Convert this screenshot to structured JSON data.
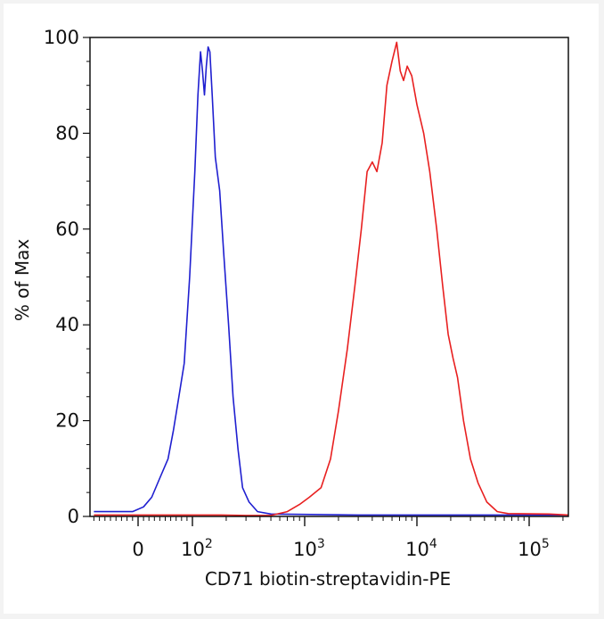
{
  "chart_data": {
    "type": "line",
    "title": "",
    "xlabel": "CD71 biotin-streptavidin-PE",
    "ylabel": "% of Max",
    "x_scale": "biexponential",
    "ylim": [
      0,
      100
    ],
    "y_ticks": [
      0,
      20,
      40,
      60,
      80,
      100
    ],
    "x_ticks": [
      {
        "value": 0,
        "base": "0",
        "exp": ""
      },
      {
        "value": 100,
        "base": "10",
        "exp": "2"
      },
      {
        "value": 1000,
        "base": "10",
        "exp": "3"
      },
      {
        "value": 10000,
        "base": "10",
        "exp": "4"
      },
      {
        "value": 100000,
        "base": "10",
        "exp": "5"
      }
    ],
    "series": [
      {
        "color": "#1f1fd0",
        "points": [
          [
            -80,
            1
          ],
          [
            -40,
            1
          ],
          [
            -10,
            1
          ],
          [
            10,
            2
          ],
          [
            25,
            4
          ],
          [
            40,
            8
          ],
          [
            55,
            12
          ],
          [
            65,
            18
          ],
          [
            75,
            25
          ],
          [
            85,
            32
          ],
          [
            95,
            50
          ],
          [
            105,
            72
          ],
          [
            112,
            88
          ],
          [
            118,
            97
          ],
          [
            123,
            93
          ],
          [
            128,
            88
          ],
          [
            133,
            94
          ],
          [
            138,
            98
          ],
          [
            143,
            97
          ],
          [
            150,
            88
          ],
          [
            160,
            75
          ],
          [
            175,
            68
          ],
          [
            190,
            55
          ],
          [
            210,
            40
          ],
          [
            230,
            25
          ],
          [
            255,
            14
          ],
          [
            280,
            6
          ],
          [
            320,
            3
          ],
          [
            380,
            1
          ],
          [
            500,
            0.5
          ],
          [
            3000,
            0.3
          ],
          [
            20000,
            0.3
          ],
          [
            100000,
            0.3
          ],
          [
            250000,
            0.3
          ]
        ]
      },
      {
        "color": "#e82020",
        "points": [
          [
            -80,
            0.3
          ],
          [
            100,
            0.3
          ],
          [
            180,
            0.3
          ],
          [
            300,
            0.2
          ],
          [
            500,
            0.2
          ],
          [
            700,
            1
          ],
          [
            900,
            2.5
          ],
          [
            1100,
            4
          ],
          [
            1400,
            6
          ],
          [
            1700,
            12
          ],
          [
            2000,
            22
          ],
          [
            2400,
            35
          ],
          [
            2800,
            48
          ],
          [
            3200,
            60
          ],
          [
            3600,
            72
          ],
          [
            4000,
            74
          ],
          [
            4400,
            72
          ],
          [
            4900,
            78
          ],
          [
            5400,
            90
          ],
          [
            6000,
            95
          ],
          [
            6600,
            99
          ],
          [
            7100,
            93
          ],
          [
            7600,
            91
          ],
          [
            8200,
            94
          ],
          [
            9000,
            92
          ],
          [
            10000,
            86
          ],
          [
            11500,
            80
          ],
          [
            13000,
            72
          ],
          [
            15000,
            60
          ],
          [
            17000,
            48
          ],
          [
            19000,
            38
          ],
          [
            21000,
            33
          ],
          [
            23000,
            29
          ],
          [
            26000,
            20
          ],
          [
            30000,
            12
          ],
          [
            35000,
            7
          ],
          [
            42000,
            3
          ],
          [
            52000,
            1
          ],
          [
            65000,
            0.6
          ],
          [
            150000,
            0.5
          ],
          [
            250000,
            0.3
          ]
        ]
      }
    ]
  }
}
